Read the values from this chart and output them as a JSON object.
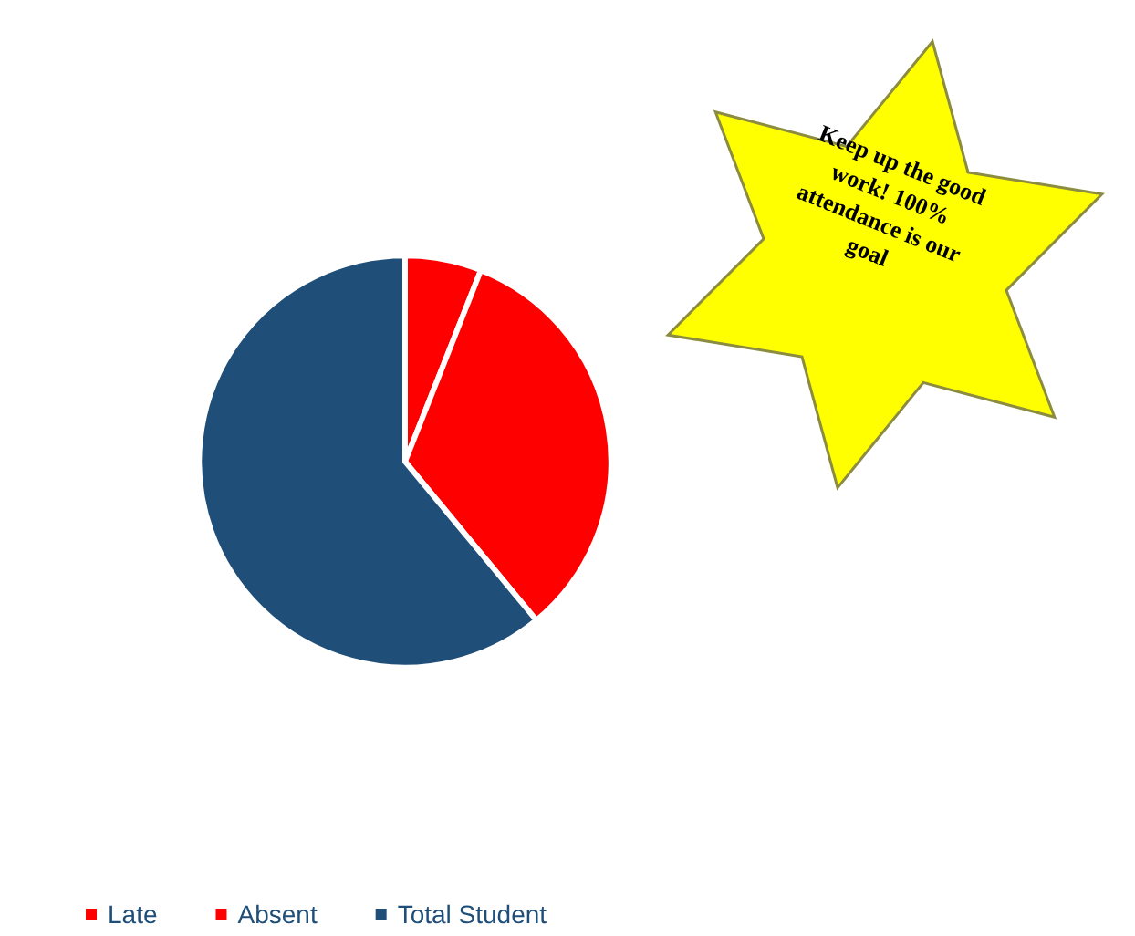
{
  "chart_data": {
    "type": "pie",
    "categories": [
      "Late",
      "Absent",
      "Total Student"
    ],
    "values": [
      6,
      33,
      61
    ],
    "colors": [
      "#ff0000",
      "#ff0000",
      "#1f4e79"
    ],
    "legend": "bottom left",
    "annotations": [
      "Keep up the good work! 100% attendance is our goal"
    ]
  }
}
